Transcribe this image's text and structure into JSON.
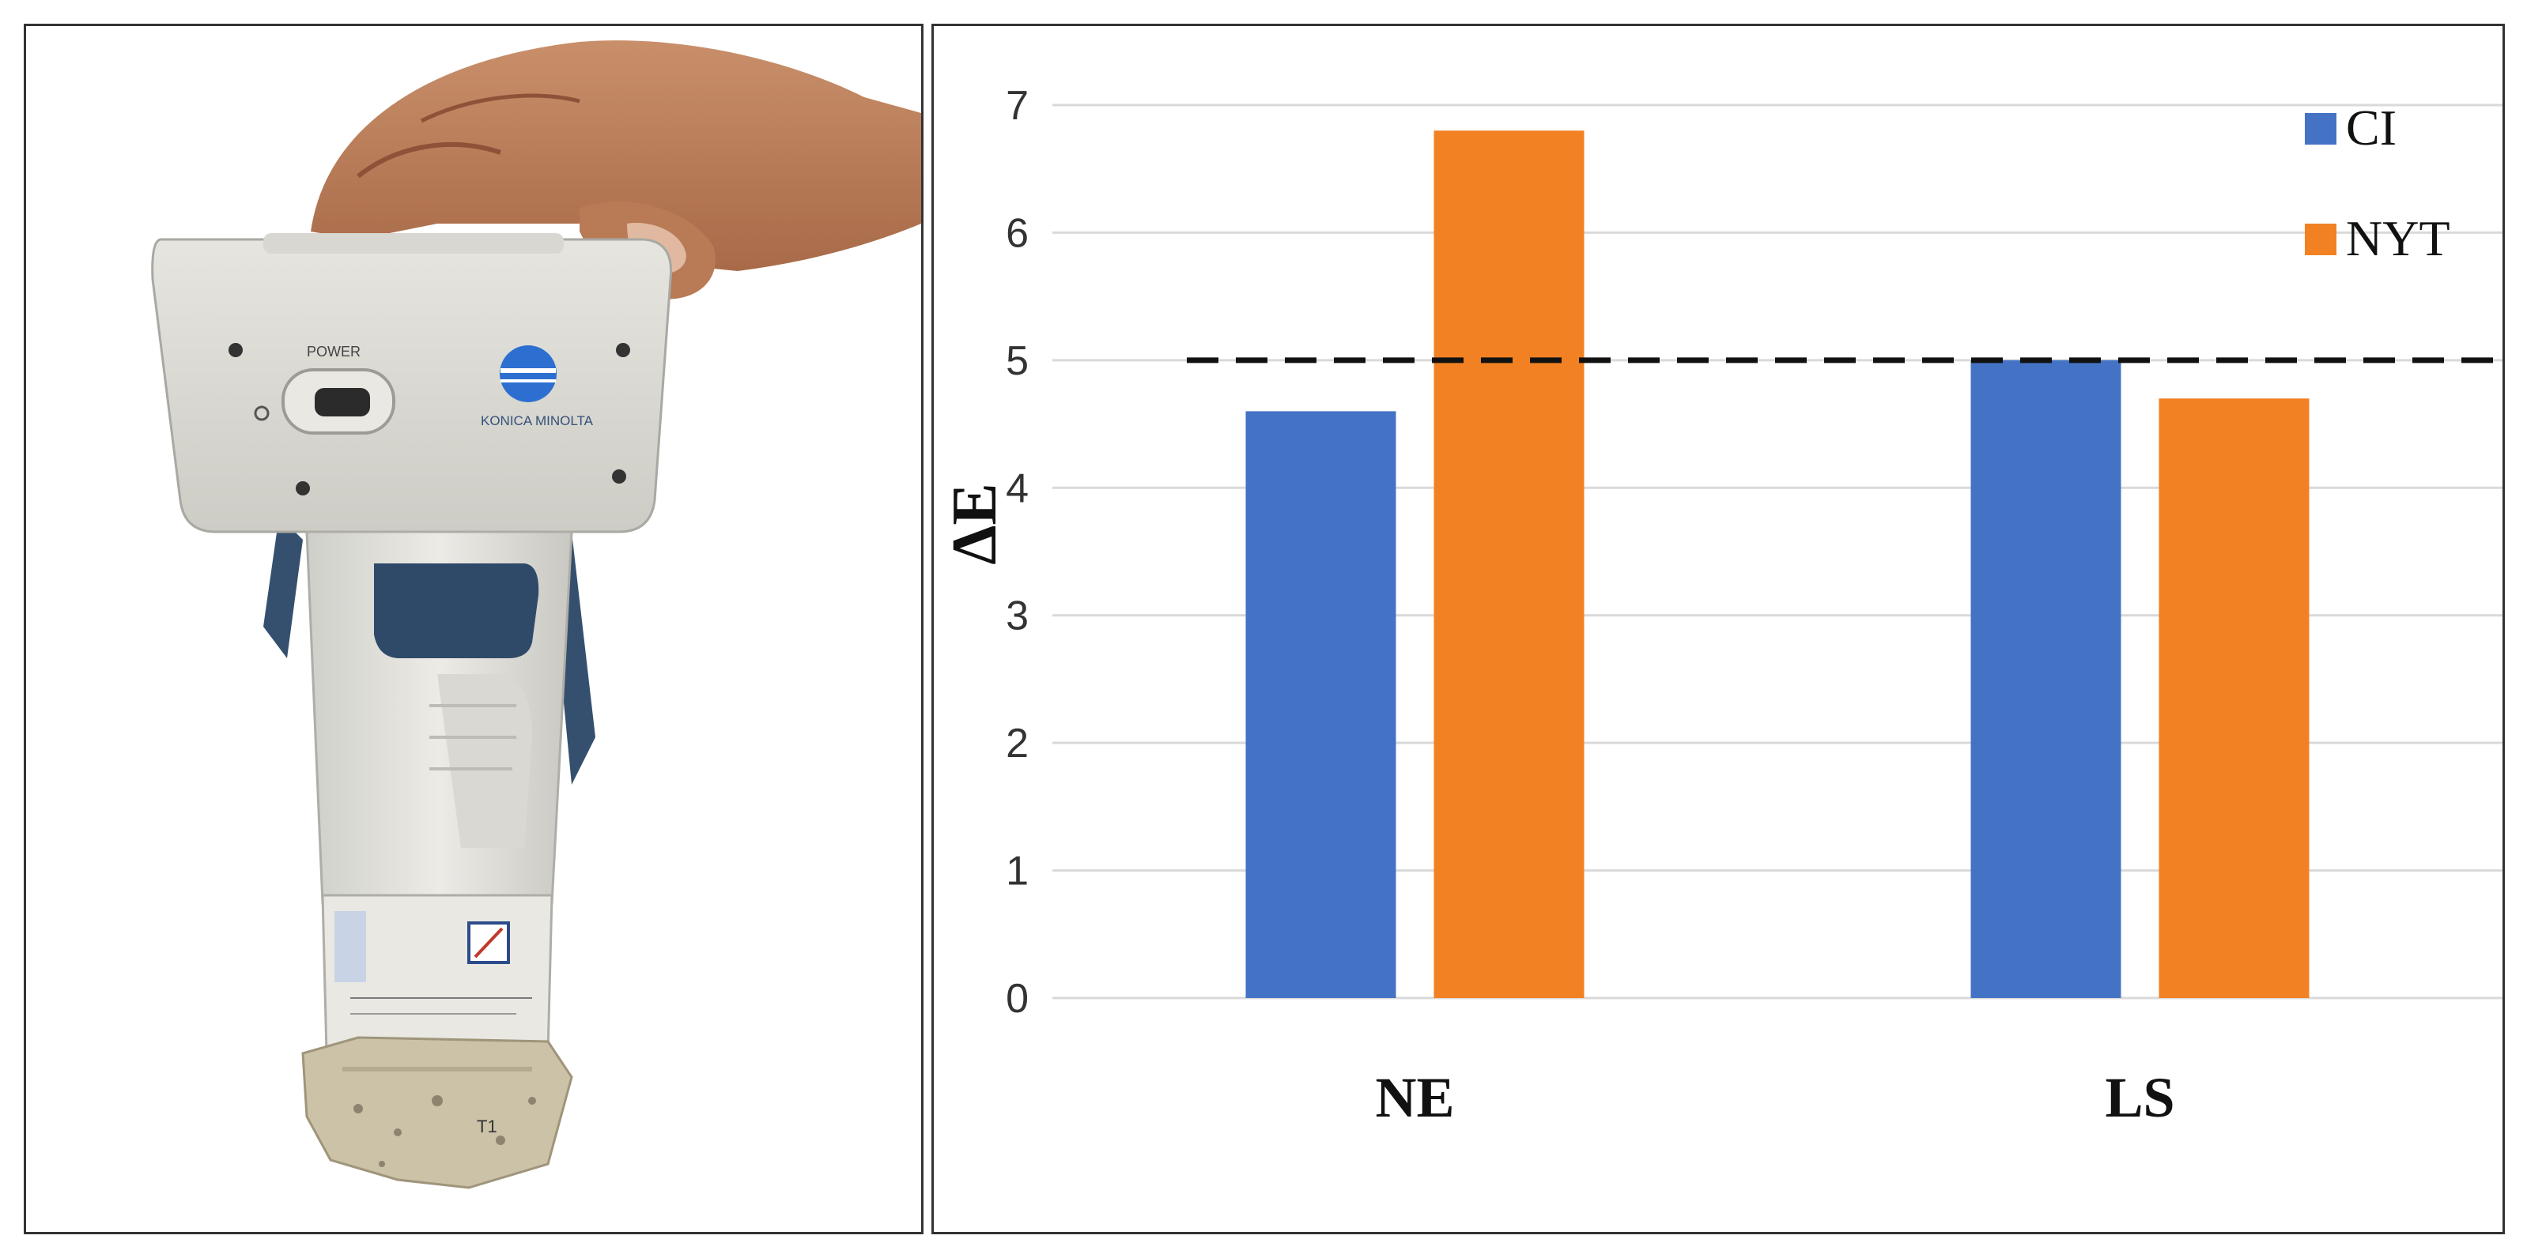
{
  "photo": {
    "power_label": "POWER",
    "brand_label": "KONICA MINOLTA",
    "sample_label": "T1"
  },
  "chart_data": {
    "type": "bar",
    "categories": [
      "NE",
      "LS"
    ],
    "series": [
      {
        "name": "CI",
        "color": "#4472C4",
        "values": [
          4.6,
          5.0
        ]
      },
      {
        "name": "NYT",
        "color": "#F28123",
        "values": [
          6.8,
          4.7
        ]
      }
    ],
    "ylabel": "ΔE",
    "ylim": [
      0,
      7
    ],
    "yticks": [
      0,
      1,
      2,
      3,
      4,
      5,
      6,
      7
    ],
    "threshold": 5,
    "threshold_style": "dashed",
    "grid": true,
    "legend_position": "top-right"
  }
}
